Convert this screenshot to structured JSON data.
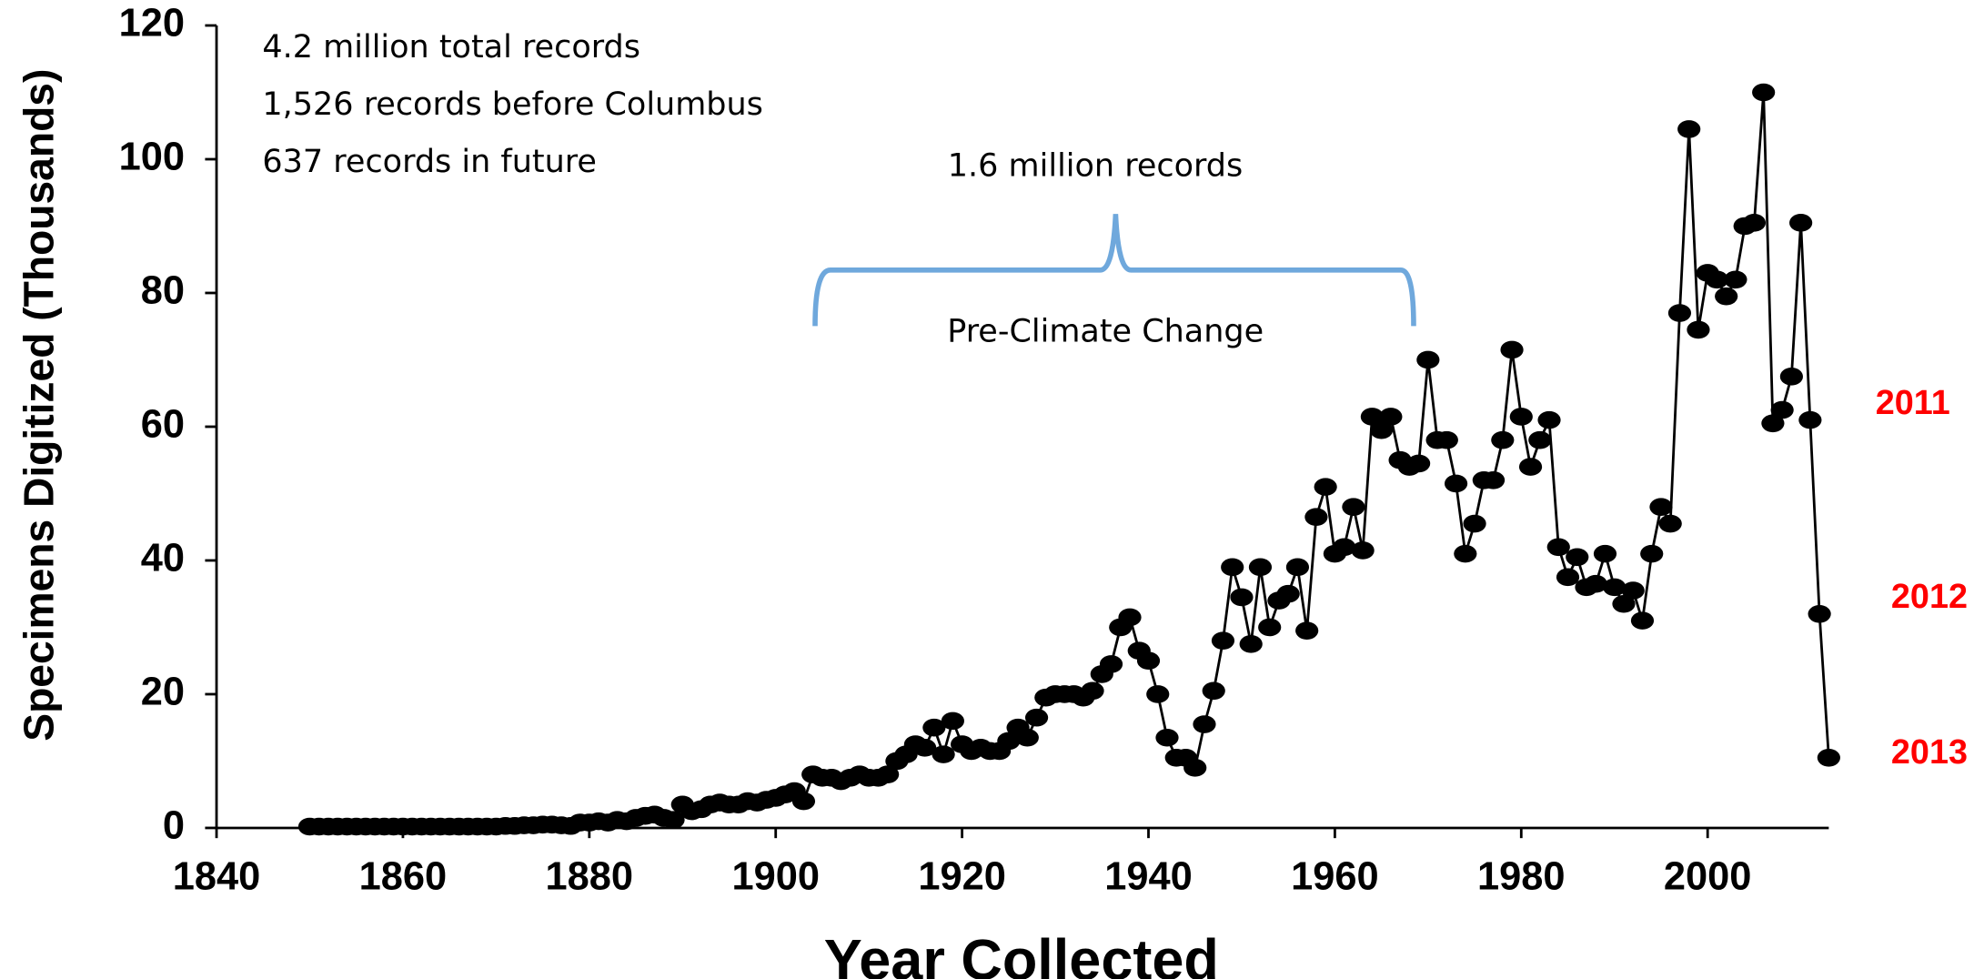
{
  "chart_data": {
    "type": "line",
    "x_label": "Year Collected",
    "y_label": "Specimens Digitized (Thousands)",
    "annotations": [
      "4.2 million total records",
      "1,526 records before Columbus",
      "637 records in future",
      "1.6 million records",
      "Pre-Climate Change",
      "2011",
      "2012",
      "2013"
    ],
    "xlim": [
      1840,
      2013
    ],
    "xticks": [
      1840,
      1860,
      1880,
      1900,
      1920,
      1940,
      1960,
      1980,
      2000
    ],
    "ylim": [
      0,
      120
    ],
    "yticks": [
      0,
      20,
      40,
      60,
      80,
      100,
      120
    ],
    "x": [
      1850,
      1851,
      1852,
      1853,
      1854,
      1855,
      1856,
      1857,
      1858,
      1859,
      1860,
      1861,
      1862,
      1863,
      1864,
      1865,
      1866,
      1867,
      1868,
      1869,
      1870,
      1871,
      1872,
      1873,
      1874,
      1875,
      1876,
      1877,
      1878,
      1879,
      1880,
      1881,
      1882,
      1883,
      1884,
      1885,
      1886,
      1887,
      1888,
      1889,
      1890,
      1891,
      1892,
      1893,
      1894,
      1895,
      1896,
      1897,
      1898,
      1899,
      1900,
      1901,
      1902,
      1903,
      1904,
      1905,
      1906,
      1907,
      1908,
      1909,
      1910,
      1911,
      1912,
      1913,
      1914,
      1915,
      1916,
      1917,
      1918,
      1919,
      1920,
      1921,
      1922,
      1923,
      1924,
      1925,
      1926,
      1927,
      1928,
      1929,
      1930,
      1931,
      1932,
      1933,
      1934,
      1935,
      1936,
      1937,
      1938,
      1939,
      1940,
      1941,
      1942,
      1943,
      1944,
      1945,
      1946,
      1947,
      1948,
      1949,
      1950,
      1951,
      1952,
      1953,
      1954,
      1955,
      1956,
      1957,
      1958,
      1959,
      1960,
      1961,
      1962,
      1963,
      1964,
      1965,
      1966,
      1967,
      1968,
      1969,
      1970,
      1971,
      1972,
      1973,
      1974,
      1975,
      1976,
      1977,
      1978,
      1979,
      1980,
      1981,
      1982,
      1983,
      1984,
      1985,
      1986,
      1987,
      1988,
      1989,
      1990,
      1991,
      1992,
      1993,
      1994,
      1995,
      1996,
      1997,
      1998,
      1999,
      2000,
      2001,
      2002,
      2003,
      2004,
      2005,
      2006,
      2007,
      2008,
      2009,
      2010,
      2011,
      2012,
      2013
    ],
    "series": [
      {
        "name": "Specimens",
        "color": "#000000",
        "values": [
          0.2,
          0.2,
          0.2,
          0.2,
          0.2,
          0.2,
          0.2,
          0.2,
          0.2,
          0.2,
          0.2,
          0.2,
          0.2,
          0.2,
          0.2,
          0.2,
          0.2,
          0.2,
          0.2,
          0.2,
          0.2,
          0.3,
          0.3,
          0.4,
          0.4,
          0.5,
          0.5,
          0.4,
          0.3,
          0.8,
          0.8,
          1,
          0.8,
          1.2,
          1,
          1.5,
          1.8,
          2,
          1.5,
          1.2,
          3.5,
          2.5,
          2.8,
          3.5,
          3.8,
          3.5,
          3.5,
          4,
          3.8,
          4.2,
          4.5,
          5,
          5.5,
          4,
          8,
          7.5,
          7.5,
          7,
          7.5,
          8,
          7.5,
          7.5,
          8,
          10,
          11,
          12.5,
          12,
          15,
          11,
          16,
          12.5,
          11.5,
          12,
          11.5,
          11.5,
          13,
          15,
          13.5,
          16.5,
          19.5,
          20,
          20,
          20,
          19.5,
          20.5,
          23,
          24.5,
          30,
          31.5,
          26.5,
          25,
          20,
          13.5,
          10.5,
          10.5,
          9,
          15.5,
          20.5,
          28,
          39,
          34.5,
          27.5,
          39,
          30,
          34,
          35,
          39,
          29.5,
          46.5,
          51,
          41,
          42,
          48,
          41.5,
          61.5,
          59.5,
          61.5,
          55,
          54,
          54.5,
          70,
          58,
          58,
          51.5,
          41,
          45.5,
          52,
          52,
          58,
          71.5,
          61.5,
          54,
          58,
          61,
          42,
          37.5,
          40.5,
          36,
          36.5,
          41,
          36,
          33.5,
          35.5,
          31,
          41,
          48,
          45.5,
          77,
          104.5,
          74.5,
          83,
          82,
          79.5,
          82,
          90,
          90.5,
          110,
          60.5,
          62.5,
          67.5,
          90.5,
          61,
          32,
          10.5
        ]
      }
    ]
  }
}
